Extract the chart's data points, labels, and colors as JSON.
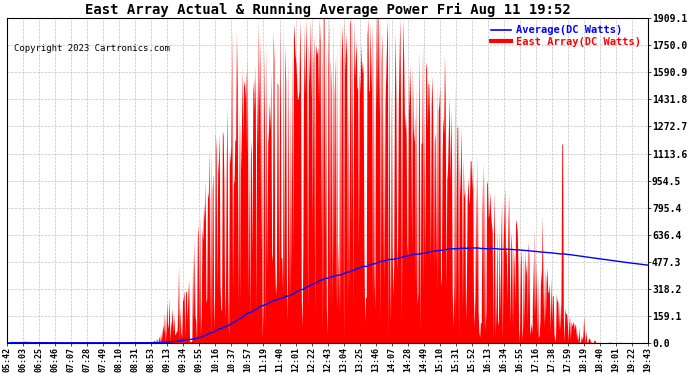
{
  "title": "East Array Actual & Running Average Power Fri Aug 11 19:52",
  "copyright": "Copyright 2023 Cartronics.com",
  "legend_avg": "Average(DC Watts)",
  "legend_east": "East Array(DC Watts)",
  "ylabel_right_ticks": [
    0.0,
    159.1,
    318.2,
    477.3,
    636.4,
    795.4,
    954.5,
    1113.6,
    1272.7,
    1431.8,
    1590.9,
    1750.0,
    1909.1
  ],
  "ymax": 1909.1,
  "ymin": 0.0,
  "bg_color": "#ffffff",
  "grid_color": "#aaaaaa",
  "area_color": "#ff0000",
  "line_color": "#0000ff",
  "title_color": "#000000",
  "copyright_color": "#000000",
  "legend_avg_color": "#0000ff",
  "legend_east_color": "#ff0000",
  "x_tick_labels": [
    "05:42",
    "06:03",
    "06:25",
    "06:46",
    "07:07",
    "07:28",
    "07:49",
    "08:10",
    "08:31",
    "08:53",
    "09:13",
    "09:34",
    "09:55",
    "10:16",
    "10:37",
    "10:57",
    "11:19",
    "11:40",
    "12:01",
    "12:22",
    "12:43",
    "13:04",
    "13:25",
    "13:46",
    "14:07",
    "14:28",
    "14:49",
    "15:10",
    "15:31",
    "15:52",
    "16:13",
    "16:34",
    "16:55",
    "17:16",
    "17:38",
    "17:59",
    "18:19",
    "18:40",
    "19:01",
    "19:22",
    "19:43"
  ],
  "n_points": 820
}
